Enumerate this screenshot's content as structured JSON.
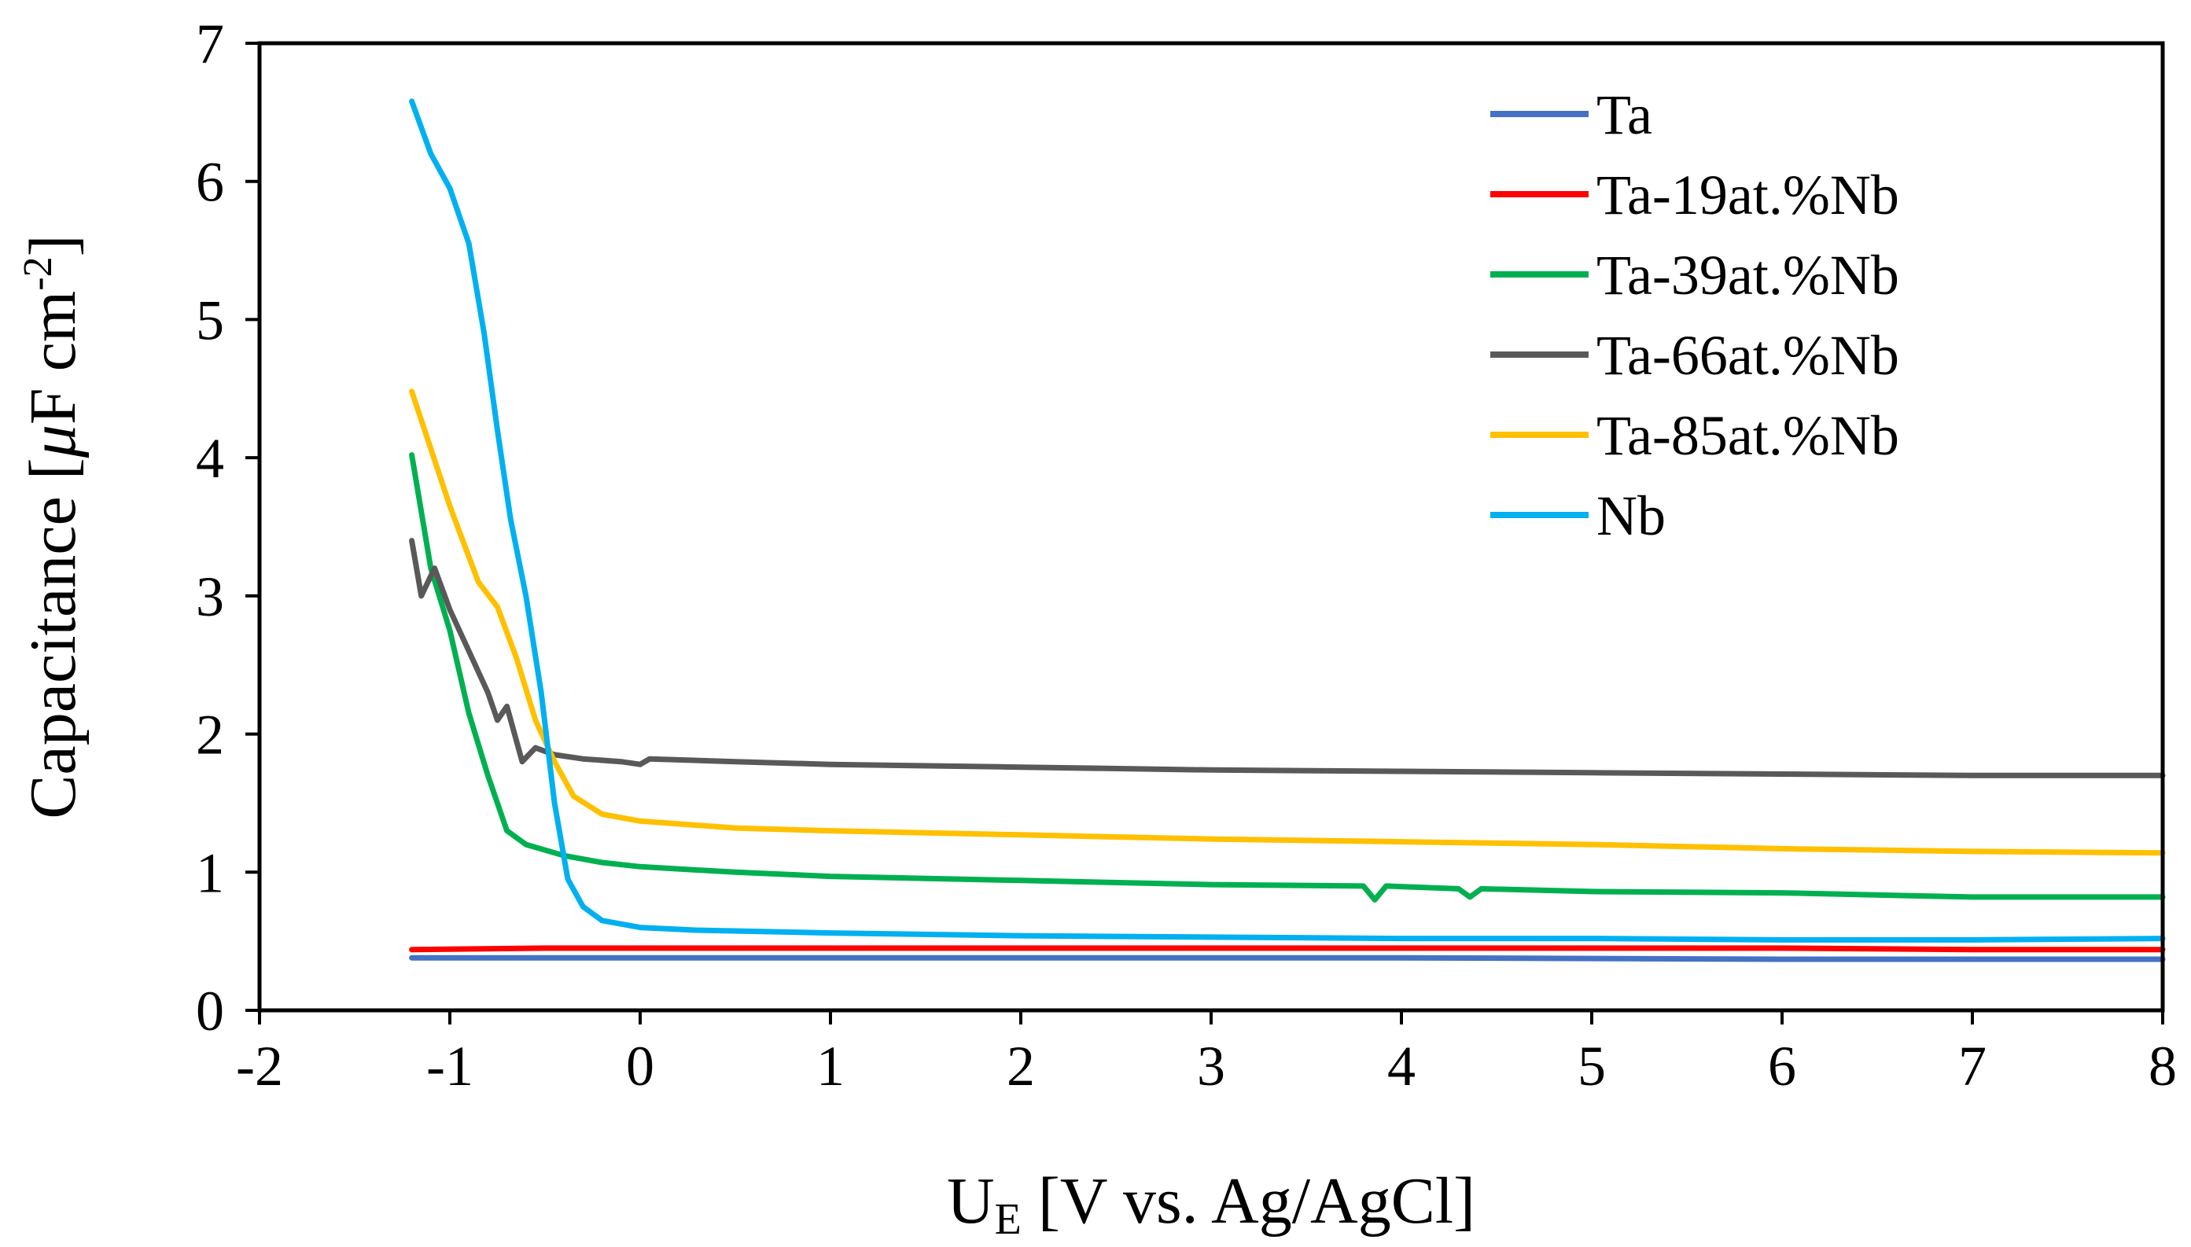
{
  "chart_data": {
    "type": "line",
    "title": "",
    "xlabel": {
      "main": "U",
      "sub": "E",
      "rest": " [V vs. Ag/AgCl]"
    },
    "ylabel": {
      "main": "Capacitance [",
      "mu": "μ",
      "unit": "F cm",
      "sup": "-2",
      "end": "]"
    },
    "xlim": [
      -2,
      8
    ],
    "ylim": [
      0,
      7
    ],
    "xticks": [
      -2,
      -1,
      0,
      1,
      2,
      3,
      4,
      5,
      6,
      7,
      8
    ],
    "yticks": [
      0,
      1,
      2,
      3,
      4,
      5,
      6,
      7
    ],
    "legend_position": "top-right",
    "series": [
      {
        "name": "Ta",
        "color": "#4472C4",
        "points": [
          [
            -1.2,
            0.38
          ],
          [
            0,
            0.38
          ],
          [
            2,
            0.38
          ],
          [
            4,
            0.38
          ],
          [
            6,
            0.37
          ],
          [
            8,
            0.37
          ]
        ]
      },
      {
        "name": "Ta-19at.%Nb",
        "color": "#FF0000",
        "points": [
          [
            -1.2,
            0.44
          ],
          [
            -0.5,
            0.45
          ],
          [
            0,
            0.45
          ],
          [
            2,
            0.45
          ],
          [
            4,
            0.45
          ],
          [
            6,
            0.45
          ],
          [
            7,
            0.44
          ],
          [
            8,
            0.44
          ]
        ]
      },
      {
        "name": "Ta-39at.%Nb",
        "color": "#00B050",
        "points": [
          [
            -1.2,
            4.02
          ],
          [
            -1.1,
            3.2
          ],
          [
            -1.0,
            2.75
          ],
          [
            -0.9,
            2.15
          ],
          [
            -0.8,
            1.7
          ],
          [
            -0.7,
            1.3
          ],
          [
            -0.6,
            1.2
          ],
          [
            -0.4,
            1.12
          ],
          [
            -0.2,
            1.07
          ],
          [
            0,
            1.04
          ],
          [
            0.5,
            1.0
          ],
          [
            1,
            0.97
          ],
          [
            2,
            0.94
          ],
          [
            3,
            0.91
          ],
          [
            3.8,
            0.9
          ],
          [
            3.86,
            0.8
          ],
          [
            3.92,
            0.9
          ],
          [
            4.3,
            0.88
          ],
          [
            4.36,
            0.82
          ],
          [
            4.42,
            0.88
          ],
          [
            5,
            0.86
          ],
          [
            6,
            0.85
          ],
          [
            7,
            0.82
          ],
          [
            8,
            0.82
          ]
        ]
      },
      {
        "name": "Ta-66at.%Nb",
        "color": "#595959",
        "points": [
          [
            -1.2,
            3.4
          ],
          [
            -1.15,
            3.0
          ],
          [
            -1.08,
            3.2
          ],
          [
            -1.0,
            2.9
          ],
          [
            -0.9,
            2.6
          ],
          [
            -0.8,
            2.3
          ],
          [
            -0.75,
            2.1
          ],
          [
            -0.7,
            2.2
          ],
          [
            -0.62,
            1.8
          ],
          [
            -0.55,
            1.9
          ],
          [
            -0.45,
            1.85
          ],
          [
            -0.3,
            1.82
          ],
          [
            -0.1,
            1.8
          ],
          [
            0,
            1.78
          ],
          [
            0.05,
            1.82
          ],
          [
            0.5,
            1.8
          ],
          [
            1,
            1.78
          ],
          [
            2,
            1.76
          ],
          [
            3,
            1.74
          ],
          [
            4,
            1.73
          ],
          [
            5,
            1.72
          ],
          [
            6,
            1.71
          ],
          [
            7,
            1.7
          ],
          [
            8,
            1.7
          ]
        ]
      },
      {
        "name": "Ta-85at.%Nb",
        "color": "#FFC000",
        "points": [
          [
            -1.2,
            4.48
          ],
          [
            -1.0,
            3.65
          ],
          [
            -0.85,
            3.1
          ],
          [
            -0.75,
            2.92
          ],
          [
            -0.65,
            2.55
          ],
          [
            -0.55,
            2.1
          ],
          [
            -0.45,
            1.8
          ],
          [
            -0.35,
            1.55
          ],
          [
            -0.2,
            1.42
          ],
          [
            0,
            1.37
          ],
          [
            0.5,
            1.32
          ],
          [
            1,
            1.3
          ],
          [
            2,
            1.27
          ],
          [
            3,
            1.24
          ],
          [
            4,
            1.22
          ],
          [
            5,
            1.2
          ],
          [
            6,
            1.17
          ],
          [
            7,
            1.15
          ],
          [
            8,
            1.14
          ]
        ]
      },
      {
        "name": "Nb",
        "color": "#00B0F0",
        "points": [
          [
            -1.2,
            6.58
          ],
          [
            -1.1,
            6.2
          ],
          [
            -1.0,
            5.95
          ],
          [
            -0.9,
            5.55
          ],
          [
            -0.82,
            4.9
          ],
          [
            -0.75,
            4.2
          ],
          [
            -0.68,
            3.55
          ],
          [
            -0.6,
            3.0
          ],
          [
            -0.52,
            2.3
          ],
          [
            -0.45,
            1.5
          ],
          [
            -0.38,
            0.95
          ],
          [
            -0.3,
            0.75
          ],
          [
            -0.2,
            0.65
          ],
          [
            0,
            0.6
          ],
          [
            0.3,
            0.58
          ],
          [
            1,
            0.56
          ],
          [
            2,
            0.54
          ],
          [
            3,
            0.53
          ],
          [
            4,
            0.52
          ],
          [
            5,
            0.52
          ],
          [
            6,
            0.51
          ],
          [
            7,
            0.51
          ],
          [
            8,
            0.52
          ]
        ]
      }
    ]
  }
}
